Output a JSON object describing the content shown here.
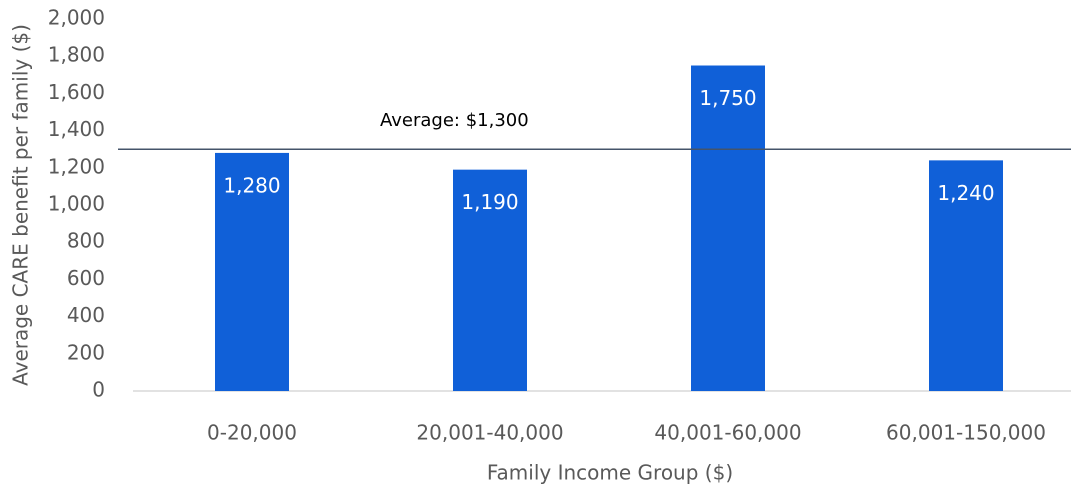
{
  "chart_data": {
    "type": "bar",
    "x_label": "Family Income Group ($)",
    "y_label": "Average CARE benefit per family ($)",
    "categories": [
      "0-20,000",
      "20,001-40,000",
      "40,001-60,000",
      "60,001-150,000"
    ],
    "values": [
      1280,
      1190,
      1750,
      1240
    ],
    "value_labels": [
      "1,280",
      "1,190",
      "1,750",
      "1,240"
    ],
    "color": "#1060d8",
    "ylim": [
      0,
      2000
    ],
    "yticks": [
      0,
      200,
      400,
      600,
      800,
      {
        "value": 1000,
        "label": "1,000"
      },
      {
        "value": 1200,
        "label": "1,200"
      },
      {
        "value": 1400,
        "label": "1,400"
      },
      {
        "value": 1600,
        "label": "1,600"
      },
      {
        "value": 1800,
        "label": "1,800"
      },
      {
        "value": 2000,
        "label": "2,000"
      }
    ],
    "grid": false,
    "reference_line": {
      "value": 1300,
      "label": "Average: $1,300",
      "color": "#44546a"
    }
  }
}
